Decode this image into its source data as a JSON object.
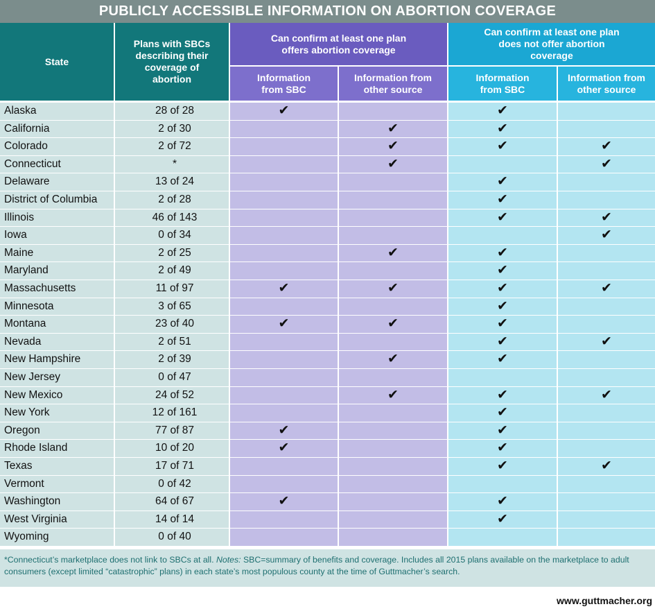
{
  "title": "PUBLICLY ACCESSIBLE INFORMATION ON ABORTION COVERAGE",
  "headers": {
    "state": "State",
    "plans": "Plans with SBCs describing their coverage of abortion",
    "group_offers": "Can confirm at least one plan offers abortion coverage",
    "group_not_offer": "Can confirm at least one plan does not offer abortion coverage",
    "sub_sbc": "Information from SBC",
    "sub_other": "Information from other source"
  },
  "check_symbol": "✔",
  "rows": [
    {
      "state": "Alaska",
      "plans": "28 of 28",
      "checks": [
        1,
        0,
        1,
        0
      ]
    },
    {
      "state": "California",
      "plans": "2 of 30",
      "checks": [
        0,
        1,
        1,
        0
      ]
    },
    {
      "state": "Colorado",
      "plans": "2 of 72",
      "checks": [
        0,
        1,
        1,
        1
      ]
    },
    {
      "state": "Connecticut",
      "plans": "*",
      "checks": [
        0,
        1,
        0,
        1
      ]
    },
    {
      "state": "Delaware",
      "plans": "13 of 24",
      "checks": [
        0,
        0,
        1,
        0
      ]
    },
    {
      "state": "District of Columbia",
      "plans": "2 of 28",
      "checks": [
        0,
        0,
        1,
        0
      ]
    },
    {
      "state": "Illinois",
      "plans": "46 of 143",
      "checks": [
        0,
        0,
        1,
        1
      ]
    },
    {
      "state": "Iowa",
      "plans": "0 of 34",
      "checks": [
        0,
        0,
        0,
        1
      ]
    },
    {
      "state": "Maine",
      "plans": "2 of 25",
      "checks": [
        0,
        1,
        1,
        0
      ]
    },
    {
      "state": "Maryland",
      "plans": "2 of 49",
      "checks": [
        0,
        0,
        1,
        0
      ]
    },
    {
      "state": "Massachusetts",
      "plans": "11 of 97",
      "checks": [
        1,
        1,
        1,
        1
      ]
    },
    {
      "state": "Minnesota",
      "plans": "3 of 65",
      "checks": [
        0,
        0,
        1,
        0
      ]
    },
    {
      "state": "Montana",
      "plans": "23 of 40",
      "checks": [
        1,
        1,
        1,
        0
      ]
    },
    {
      "state": "Nevada",
      "plans": "2 of 51",
      "checks": [
        0,
        0,
        1,
        1
      ]
    },
    {
      "state": "New Hampshire",
      "plans": "2 of 39",
      "checks": [
        0,
        1,
        1,
        0
      ]
    },
    {
      "state": "New Jersey",
      "plans": "0 of 47",
      "checks": [
        0,
        0,
        0,
        0
      ]
    },
    {
      "state": "New Mexico",
      "plans": "24 of 52",
      "checks": [
        0,
        1,
        1,
        1
      ]
    },
    {
      "state": "New York",
      "plans": "12 of 161",
      "checks": [
        0,
        0,
        1,
        0
      ]
    },
    {
      "state": "Oregon",
      "plans": "77 of 87",
      "checks": [
        1,
        0,
        1,
        0
      ]
    },
    {
      "state": "Rhode Island",
      "plans": "10 of 20",
      "checks": [
        1,
        0,
        1,
        0
      ]
    },
    {
      "state": "Texas",
      "plans": "17 of 71",
      "checks": [
        0,
        0,
        1,
        1
      ]
    },
    {
      "state": "Vermont",
      "plans": "0 of 42",
      "checks": [
        0,
        0,
        0,
        0
      ]
    },
    {
      "state": "Washington",
      "plans": "64 of 67",
      "checks": [
        1,
        0,
        1,
        0
      ]
    },
    {
      "state": "West Virginia",
      "plans": "14 of 14",
      "checks": [
        0,
        0,
        1,
        0
      ]
    },
    {
      "state": "Wyoming",
      "plans": "0 of 40",
      "checks": [
        0,
        0,
        0,
        0
      ]
    }
  ],
  "footnote": {
    "part1": "*Connecticut’s marketplace does not link to SBCs at all. ",
    "notes_label": "Notes:",
    "part2": " SBC=summary of benefits and coverage. Includes all 2015 plans available on the marketplace to adult consumers (except limited “catastrophic” plans) in each state’s most populous county at the time of Guttmacher’s search."
  },
  "site": "www.guttmacher.org",
  "colors": {
    "title_bg": "#7b8d8c",
    "teal_header": "#12777a",
    "purple_header": "#6a5cbf",
    "cyan_header": "#1ba7d3",
    "row_teal": "#cfe3e3",
    "row_purple": "#c2bde6",
    "row_cyan": "#b3e5f1"
  }
}
